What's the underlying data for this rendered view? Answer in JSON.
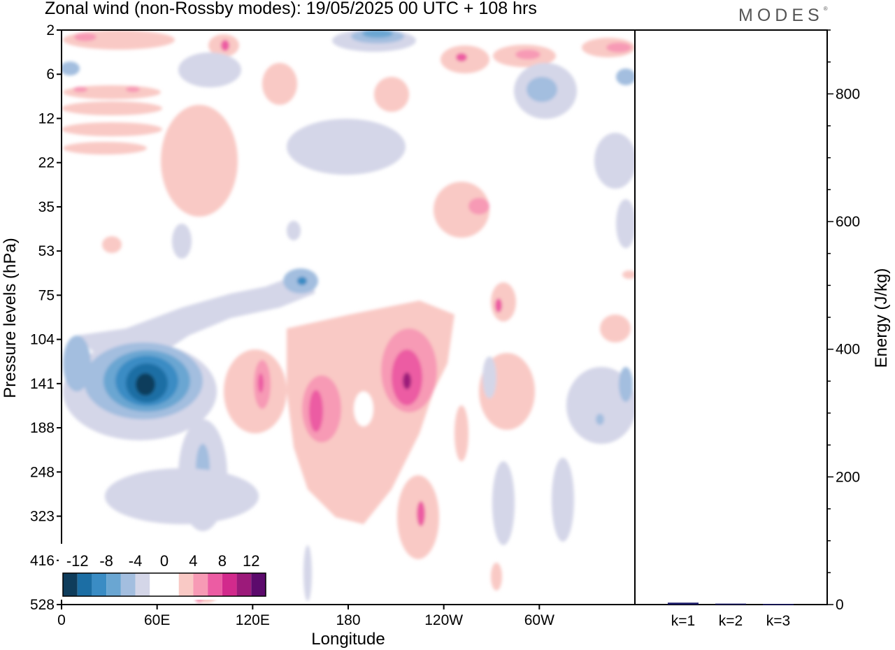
{
  "header": {
    "title": "Zonal wind (non-Rossby modes):  19/05/2025  00 UTC  + 108 hrs",
    "brand": "MODES"
  },
  "chart_data": [
    {
      "type": "heatmap",
      "title": "Zonal wind (non-Rossby modes):  19/05/2025  00 UTC  + 108 hrs",
      "xlabel": "Longitude",
      "ylabel": "Pressure levels (hPa)",
      "x_ticks": [
        "0",
        "60E",
        "120E",
        "180",
        "120W",
        "60W"
      ],
      "x_tick_positions_deg": [
        0,
        60,
        120,
        180,
        240,
        300
      ],
      "xlim_deg": [
        0,
        360
      ],
      "y_ticks": [
        "2",
        "6",
        "12",
        "22",
        "35",
        "53",
        "75",
        "104",
        "141",
        "188",
        "248",
        "323",
        "416",
        "528"
      ],
      "y_scale": "model levels (categorical, top to bottom)",
      "colorbar": {
        "tick_labels": [
          "-12",
          "-8",
          "-4",
          "0",
          "4",
          "8",
          "12"
        ],
        "colors": [
          "#0f3d5c",
          "#1c6ea4",
          "#3a8cc4",
          "#6aa6d2",
          "#a3bedf",
          "#d4d6e8",
          "#ffffff",
          "#ffffff",
          "#f9c9c5",
          "#f79ab5",
          "#ec5ca3",
          "#d22a8c",
          "#9c1a7a",
          "#5c0a6c"
        ],
        "placement": "bottom-left"
      },
      "features": [
        {
          "name": "easterly maximum",
          "lon_deg": 52,
          "level": "141",
          "value": -14
        },
        {
          "name": "westerly maximum",
          "lon_deg": 216,
          "level": "141",
          "value": 10
        },
        {
          "name": "westerly maximum",
          "lon_deg": 160,
          "level": "188",
          "value": 8
        },
        {
          "name": "westerly maximum",
          "lon_deg": 126,
          "level": "141",
          "value": 6
        },
        {
          "name": "easterly minimum",
          "lon_deg": 302,
          "level": "6",
          "value": -6
        },
        {
          "name": "easterly minimum",
          "lon_deg": 190,
          "level": "2",
          "value": -6
        },
        {
          "name": "easterly band",
          "lon_deg": 150,
          "level": "75",
          "value": -6
        }
      ]
    },
    {
      "type": "bar",
      "categories": [
        "k=1",
        "k=2",
        "k=3"
      ],
      "values": [
        3,
        1.5,
        1
      ],
      "ylabel": "Energy (J/kg)",
      "ylim": [
        0,
        900
      ],
      "y_ticks": [
        "0",
        "200",
        "400",
        "600",
        "800"
      ],
      "bar_color": "#1a1a66"
    }
  ]
}
